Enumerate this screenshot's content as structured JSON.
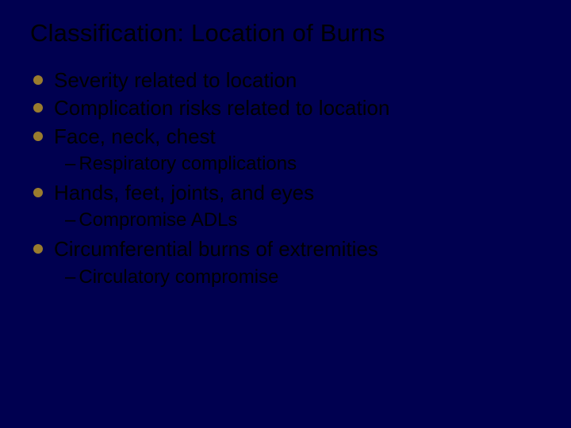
{
  "slide": {
    "title": "Classification: Location of Burns",
    "background_color": "#000050",
    "title_color": "#000000",
    "text_color": "#000000",
    "bullet_color": "#9a7c2e",
    "title_fontsize": 31,
    "bullet_fontsize": 26,
    "sub_fontsize": 24,
    "items": [
      {
        "text": "Severity related to location",
        "subs": []
      },
      {
        "text": "Complication risks related to location",
        "subs": []
      },
      {
        "text": "Face, neck, chest",
        "subs": [
          "Respiratory complications"
        ]
      },
      {
        "text": "Hands, feet, joints, and eyes",
        "subs": [
          "Compromise ADLs"
        ]
      },
      {
        "text": "Circumferential burns of extremities",
        "subs": [
          "Circulatory compromise"
        ]
      }
    ]
  }
}
